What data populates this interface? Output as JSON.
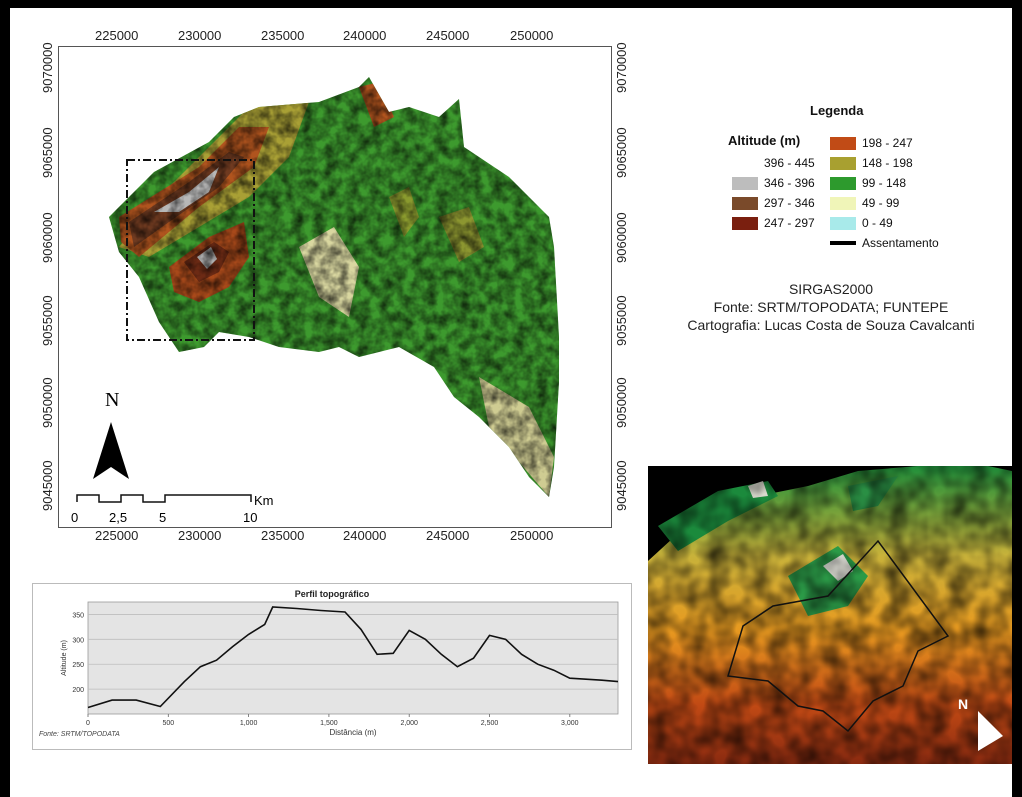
{
  "map": {
    "x_ticks": [
      "225000",
      "230000",
      "235000",
      "240000",
      "245000",
      "250000"
    ],
    "y_ticks": [
      "9070000",
      "9065000",
      "9060000",
      "9055000",
      "9050000",
      "9045000"
    ],
    "north_label": "N",
    "scale": {
      "labels": [
        "0",
        "2,5",
        "5",
        "10"
      ],
      "unit": "Km"
    }
  },
  "legend": {
    "title": "Legenda",
    "subtitle": "Altitude (m)",
    "classes": [
      {
        "label": "396 - 445",
        "color": "#ffffff"
      },
      {
        "label": "346 - 396",
        "color": "#bdbdbd"
      },
      {
        "label": "297 - 346",
        "color": "#7a4a2a"
      },
      {
        "label": "247 - 297",
        "color": "#7a1f0f"
      },
      {
        "label": "198 - 247",
        "color": "#c14b16"
      },
      {
        "label": "148 - 198",
        "color": "#a8a030"
      },
      {
        "label": "99 - 148",
        "color": "#2d9a2d"
      },
      {
        "label": "49 - 99",
        "color": "#f0f5b8"
      },
      {
        "label": "0 - 49",
        "color": "#a8eaea"
      }
    ],
    "settlement_label": "Assentamento"
  },
  "credits": {
    "line1": "SIRGAS2000",
    "line2": "Fonte: SRTM/TOPODATA; FUNTEPE",
    "line3": "Cartografia: Lucas Costa de Souza Cavalcanti"
  },
  "profile": {
    "title": "Perfil topográfico",
    "xlabel": "Distância (m)",
    "ylabel": "Altitude (m)",
    "source": "Fonte: SRTM/TOPODATA"
  },
  "view3d": {
    "north_label": "N"
  },
  "chart_data": {
    "type": "line",
    "title": "Perfil topográfico",
    "xlabel": "Distância (m)",
    "ylabel": "Altitude (m)",
    "xlim": [
      0,
      3300
    ],
    "ylim": [
      150,
      375
    ],
    "x_ticks": [
      0,
      500,
      1000,
      1500,
      2000,
      2500,
      3000
    ],
    "x_tick_labels": [
      "0",
      "500",
      "1,000",
      "1,500",
      "2,000",
      "2,500",
      "3,000"
    ],
    "y_ticks": [
      200,
      250,
      300,
      350
    ],
    "grid": true,
    "series": [
      {
        "x": [
          0,
          150,
          300,
          450,
          600,
          700,
          800,
          900,
          1000,
          1100,
          1150,
          1300,
          1450,
          1600,
          1700,
          1800,
          1900,
          2000,
          2100,
          2200,
          2300,
          2400,
          2500,
          2600,
          2700,
          2800,
          2900,
          3000,
          3100,
          3200,
          3300
        ],
        "y": [
          163,
          178,
          178,
          165,
          215,
          245,
          258,
          285,
          310,
          330,
          365,
          362,
          358,
          355,
          320,
          270,
          272,
          318,
          300,
          270,
          245,
          262,
          308,
          300,
          270,
          250,
          238,
          222,
          220,
          218,
          215
        ]
      }
    ]
  }
}
